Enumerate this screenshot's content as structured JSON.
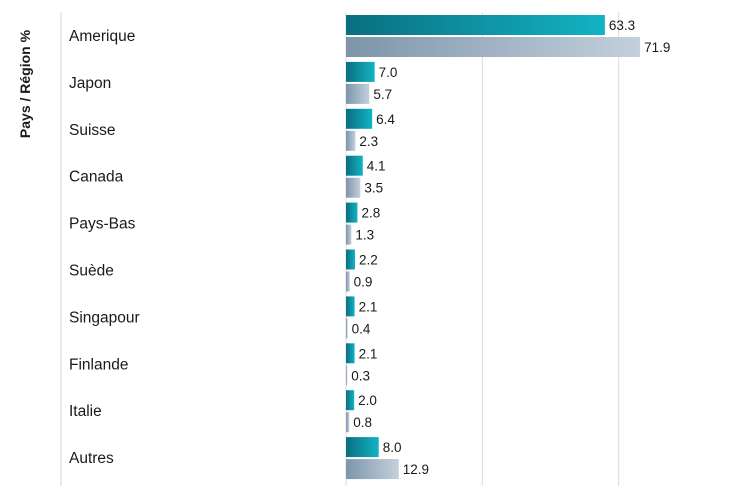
{
  "chart_data": {
    "type": "bar",
    "orientation": "horizontal",
    "ylabel": "Pays / Région %",
    "categories": [
      "Amerique",
      "Japon",
      "Suisse",
      "Canada",
      "Pays-Bas",
      "Suède",
      "Singapour",
      "Finlande",
      "Italie",
      "Autres"
    ],
    "series": [
      {
        "values": [
          63.3,
          7.0,
          6.4,
          4.1,
          2.8,
          2.2,
          2.1,
          2.1,
          2.0,
          8.0
        ],
        "color": "#0e8b9a"
      },
      {
        "values": [
          71.9,
          5.7,
          2.3,
          3.5,
          1.3,
          0.9,
          0.4,
          0.3,
          0.8,
          12.9
        ],
        "color": "#9fb3c4"
      }
    ],
    "xlim": [
      0,
      100
    ],
    "gridlines": [
      0,
      33.33,
      66.67,
      100
    ],
    "grid": true,
    "legend": "none",
    "data_labels": true
  }
}
